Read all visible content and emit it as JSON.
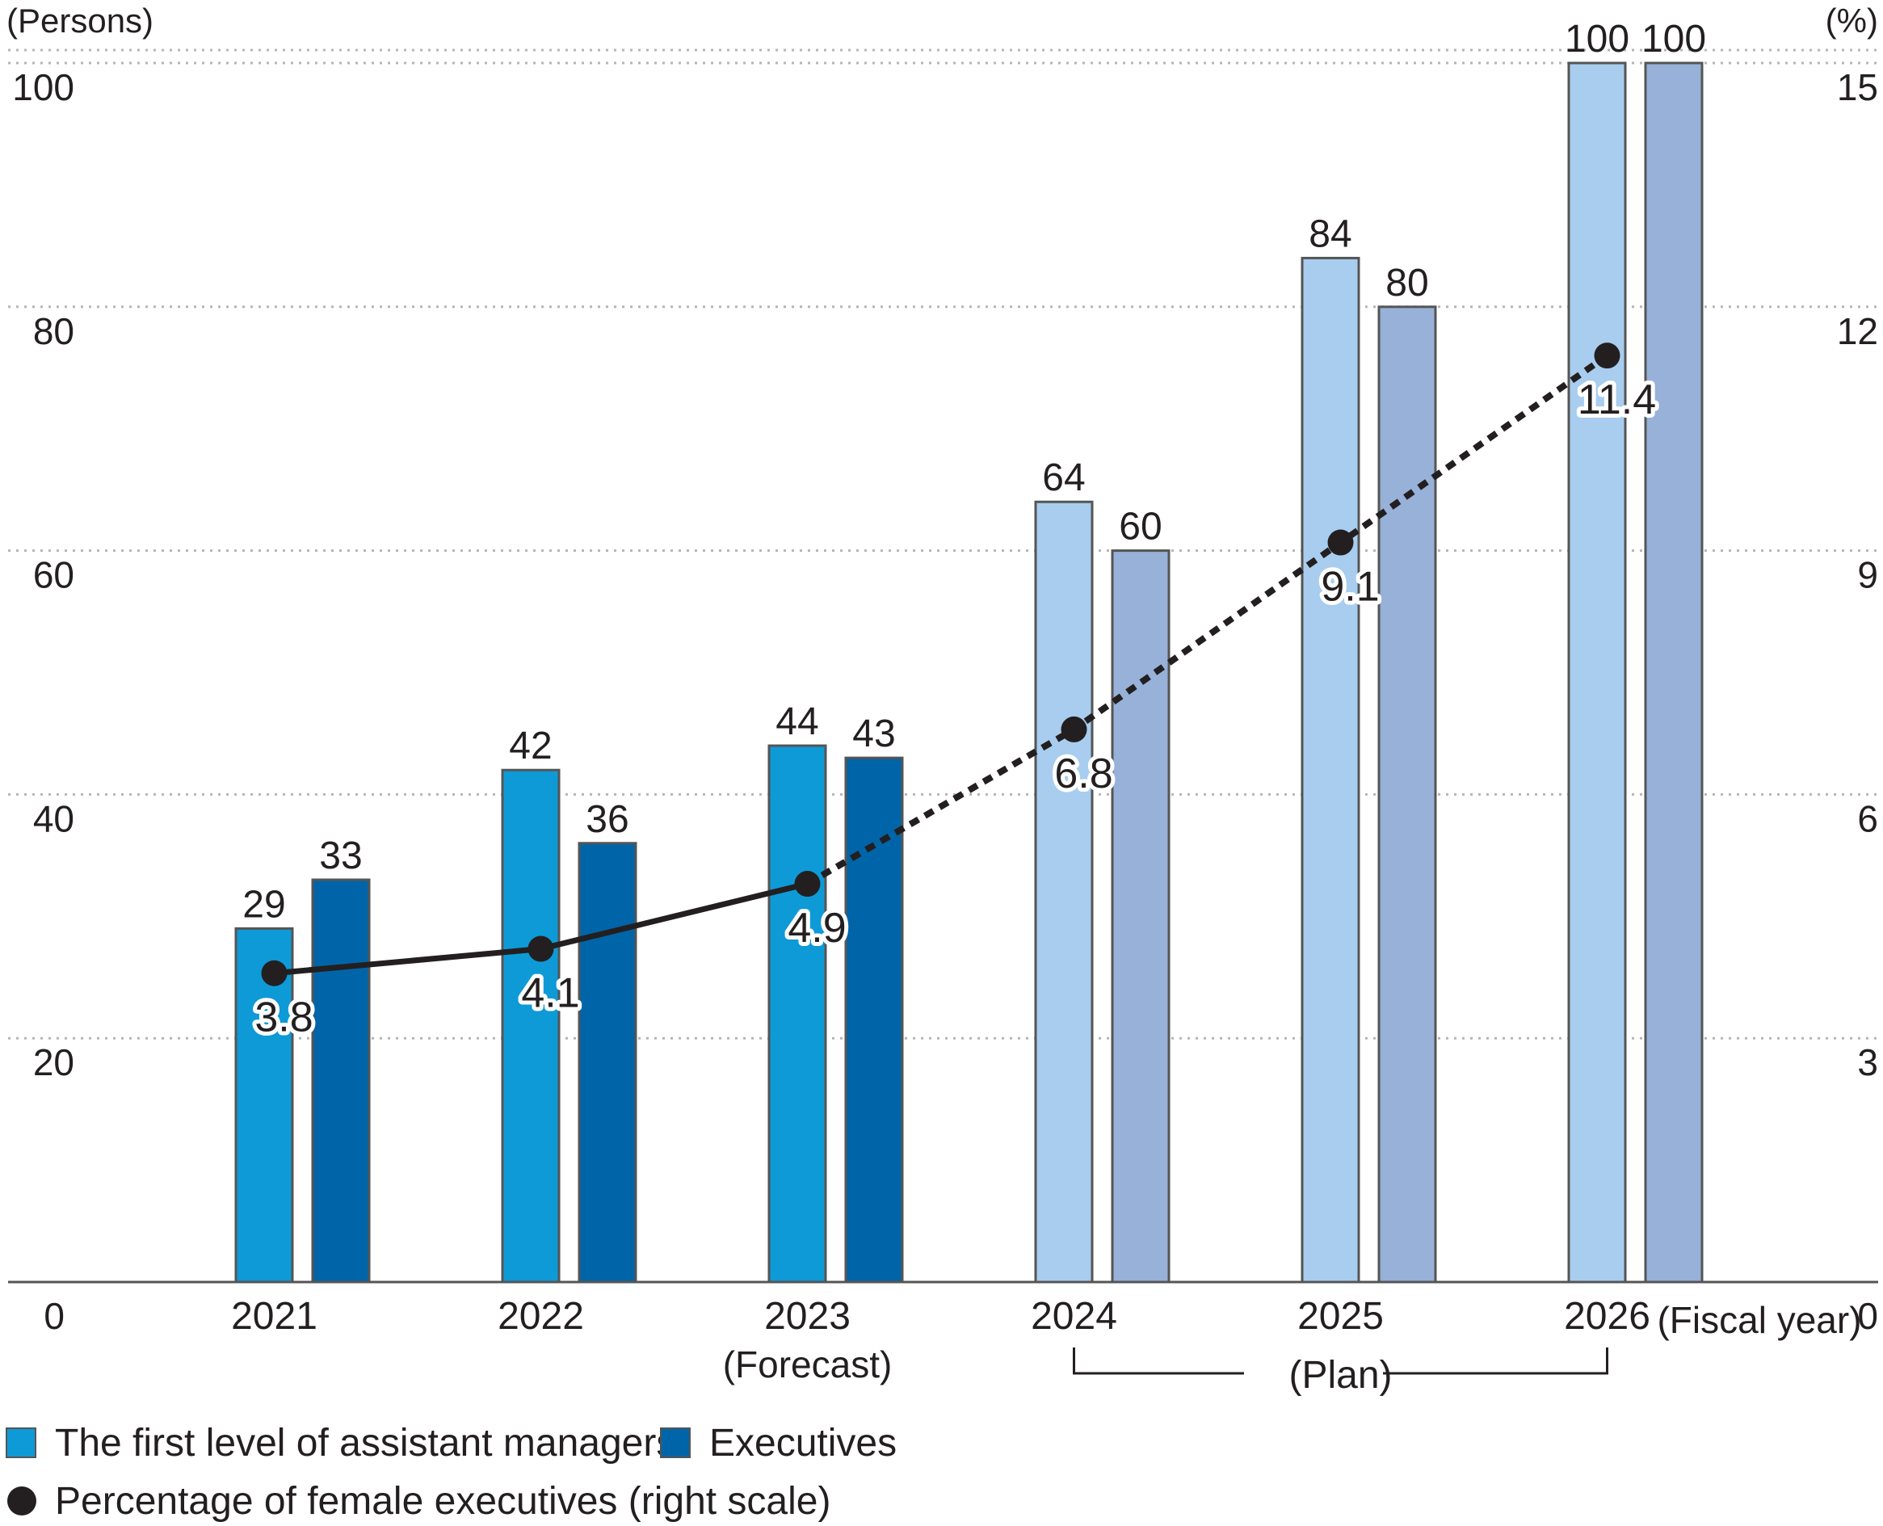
{
  "colors": {
    "assistant_actual": "#0e9ad7",
    "executive_actual": "#0065a8",
    "assistant_plan": "#a8cdee",
    "executive_plan": "#97b1d8",
    "line": "#231f20",
    "grid": "#b5b5b5"
  },
  "chart_data": {
    "type": "bar",
    "categories": [
      "2021",
      "2022",
      "2023",
      "2024",
      "2025",
      "2026"
    ],
    "category_sublabels": [
      "",
      "",
      "(Forecast)",
      "",
      "",
      ""
    ],
    "plan_label": "(Plan)",
    "plan_categories": [
      "2024",
      "2026"
    ],
    "xlabel": "(Fiscal year)",
    "y_left": {
      "label": "(Persons)",
      "ylim": [
        0,
        100
      ],
      "ticks": [
        "0",
        "20",
        "40",
        "60",
        "80",
        "100"
      ]
    },
    "y_right": {
      "label": "(%)",
      "ylim": [
        0,
        15
      ],
      "ticks": [
        "0",
        "3",
        "6",
        "9",
        "12",
        "15"
      ]
    },
    "grid": true,
    "series": [
      {
        "name": "The first level of assistant managers",
        "kind": "bar",
        "axis": "left",
        "values": [
          29,
          42,
          44,
          64,
          84,
          100
        ],
        "value_labels": [
          "29",
          "42",
          "44",
          "64",
          "84",
          "100"
        ]
      },
      {
        "name": "Executives",
        "kind": "bar",
        "axis": "left",
        "values": [
          33,
          36,
          43,
          60,
          80,
          100
        ],
        "value_labels": [
          "33",
          "36",
          "43",
          "60",
          "80",
          "100"
        ]
      },
      {
        "name": "Percentage of female executives (right scale)",
        "kind": "line",
        "axis": "right",
        "values": [
          3.8,
          4.1,
          4.9,
          6.8,
          9.1,
          11.4
        ],
        "value_labels": [
          "3.8",
          "4.1",
          "4.9",
          "6.8",
          "9.1",
          "11.4"
        ],
        "solid_through": "2023",
        "dashed_after": "2023"
      }
    ],
    "legend_position": "bottom-left"
  }
}
